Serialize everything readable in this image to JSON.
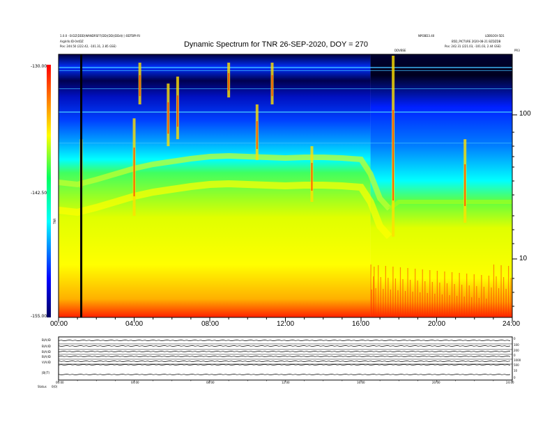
{
  "header": {
    "left_line1": "1.0.0 - B:DZ(DDD)WANDRSFF(DD)(DD)(DDd)(·) BDTBPI-RI",
    "left_line2": "ArgInfo:ID·0ntDZ",
    "left_line3": "Pos:   244.50 (222.42, -101.31, 2.85 GSE)",
    "right_line1": "NPOBD3.40",
    "right_line2": "LDBSOOI-5D1",
    "right_line3": "B5D_PICTURE 2020-08-21 BZDZDB",
    "right_line4": "Pos:   242.31 (221.03, -101.03, 2.44 GSE)",
    "marker_label": "DDVBSE",
    "corner_label": "PR3"
  },
  "chart_data": {
    "type": "heatmap",
    "title": "Dynamic Spectrum for TNR 26-SEP-2020, DOY = 270",
    "x_ticks": [
      "00:00",
      "04:00",
      "08:00",
      "12:00",
      "16:00",
      "20:00",
      "24:00"
    ],
    "xlim": [
      0,
      24
    ],
    "y_right_ticks": [
      "100",
      "10"
    ],
    "y_right_scale": "log",
    "colorbar": {
      "ticks": [
        "-130.00",
        "-142.50",
        "-155.00"
      ],
      "range": [
        -155.0,
        -130.0
      ],
      "label": "TNR",
      "colormap": [
        "#000060",
        "#0000ff",
        "#00ffff",
        "#00ff00",
        "#ffff00",
        "#ff0000"
      ]
    },
    "vertical_marker_hours": 1.2,
    "panels": {
      "labels": [
        "B(A)ID",
        "B(A)ID",
        "B(A)ID",
        "B(A)ID",
        "V(A)ID",
        "|B|(T)"
      ],
      "right_labels": [
        "0",
        "100",
        "200",
        "0",
        "1000",
        "500",
        "10",
        "0"
      ],
      "x_ticks": [
        "00:00",
        "04:00",
        "08:00",
        "12:00",
        "16:00",
        "20:00",
        "24:00"
      ],
      "footer": "Status",
      "footer_value": "0(0)"
    },
    "bands": [
      {
        "desc": "dark background top",
        "hour_start": 0,
        "hour_end": 24
      },
      {
        "desc": "bright emission curve",
        "hour_start": 0,
        "hour_end": 17
      }
    ]
  },
  "colors": {
    "dark": "#000040",
    "blue": "#0020ff",
    "cyan": "#00ffff",
    "green": "#80ff00",
    "yellow": "#ffff00",
    "red": "#ff0000"
  }
}
